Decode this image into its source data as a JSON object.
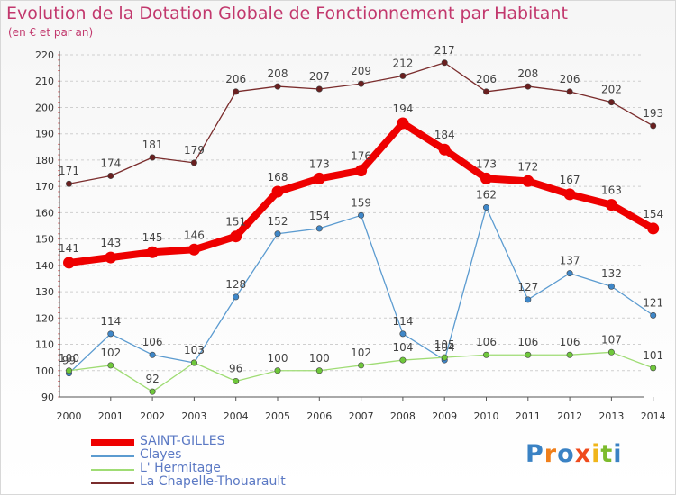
{
  "title": "Evolution de la Dotation Globale de Fonctionnement par Habitant",
  "subtitle": "(en € et par an)",
  "logo": {
    "text": "Proxiti",
    "letter_colors": [
      "#3a82c4",
      "#f07f1a",
      "#3a82c4",
      "#ef4a1c",
      "#f0b51a",
      "#7dbb2d",
      "#3a82c4"
    ]
  },
  "chart_data": {
    "type": "line",
    "title": "Evolution de la Dotation Globale de Fonctionnement par Habitant",
    "subtitle": "(en € et par an)",
    "xlabel": "",
    "ylabel": "",
    "x": [
      "2000",
      "2001",
      "2002",
      "2003",
      "2004",
      "2005",
      "2006",
      "2007",
      "2008",
      "2009",
      "2010",
      "2011",
      "2012",
      "2013",
      "2014"
    ],
    "ylim": [
      90,
      220
    ],
    "yticks": [
      90,
      100,
      110,
      120,
      130,
      140,
      150,
      160,
      170,
      180,
      190,
      200,
      210,
      220
    ],
    "grid": "horizontal dashed",
    "legend_position": "bottom-left",
    "series": [
      {
        "name": "SAINT-GILLES",
        "color": "#ee0000",
        "point_color": "#ee0000",
        "width": 8,
        "values": [
          141,
          143,
          145,
          146,
          151,
          168,
          173,
          176,
          194,
          184,
          173,
          172,
          167,
          163,
          154
        ]
      },
      {
        "name": "Clayes",
        "color": "#5b9bd0",
        "point_color": "#3f87c8",
        "width": 1.3,
        "values": [
          99,
          114,
          106,
          103,
          128,
          152,
          154,
          159,
          114,
          104,
          162,
          127,
          137,
          132,
          121
        ]
      },
      {
        "name": "L' Hermitage",
        "color": "#9fdc74",
        "point_color": "#6fc83b",
        "width": 1.3,
        "values": [
          100,
          102,
          92,
          103,
          96,
          100,
          100,
          102,
          104,
          105,
          106,
          106,
          106,
          107,
          101
        ]
      },
      {
        "name": "La Chapelle-Thouarault",
        "color": "#7a2c2c",
        "point_color": "#6a1f1f",
        "width": 1.3,
        "values": [
          171,
          174,
          181,
          179,
          206,
          208,
          207,
          209,
          212,
          217,
          206,
          208,
          206,
          202,
          193
        ]
      }
    ],
    "data_labels": {
      "SAINT-GILLES": [
        "141",
        "143",
        "145",
        "146",
        "151",
        "168",
        "173",
        "176",
        "194",
        "184",
        "173",
        "172",
        "167",
        "163",
        "154"
      ],
      "Clayes": [
        "99",
        "114",
        "106",
        "103",
        "128",
        "152",
        "154",
        "159",
        "114",
        "104",
        "162",
        "127",
        "137",
        "132",
        "121"
      ],
      "L' Hermitage": [
        "100",
        "102",
        "92",
        "103",
        "96",
        "100",
        "100",
        "102",
        "104",
        "105",
        "106",
        "106",
        "106",
        "107",
        "101"
      ],
      "La Chapelle-Thouarault": [
        "171",
        "174",
        "181",
        "179",
        "206",
        "208",
        "207",
        "209",
        "212",
        "217",
        "206",
        "208",
        "206",
        "202",
        "193"
      ]
    }
  }
}
